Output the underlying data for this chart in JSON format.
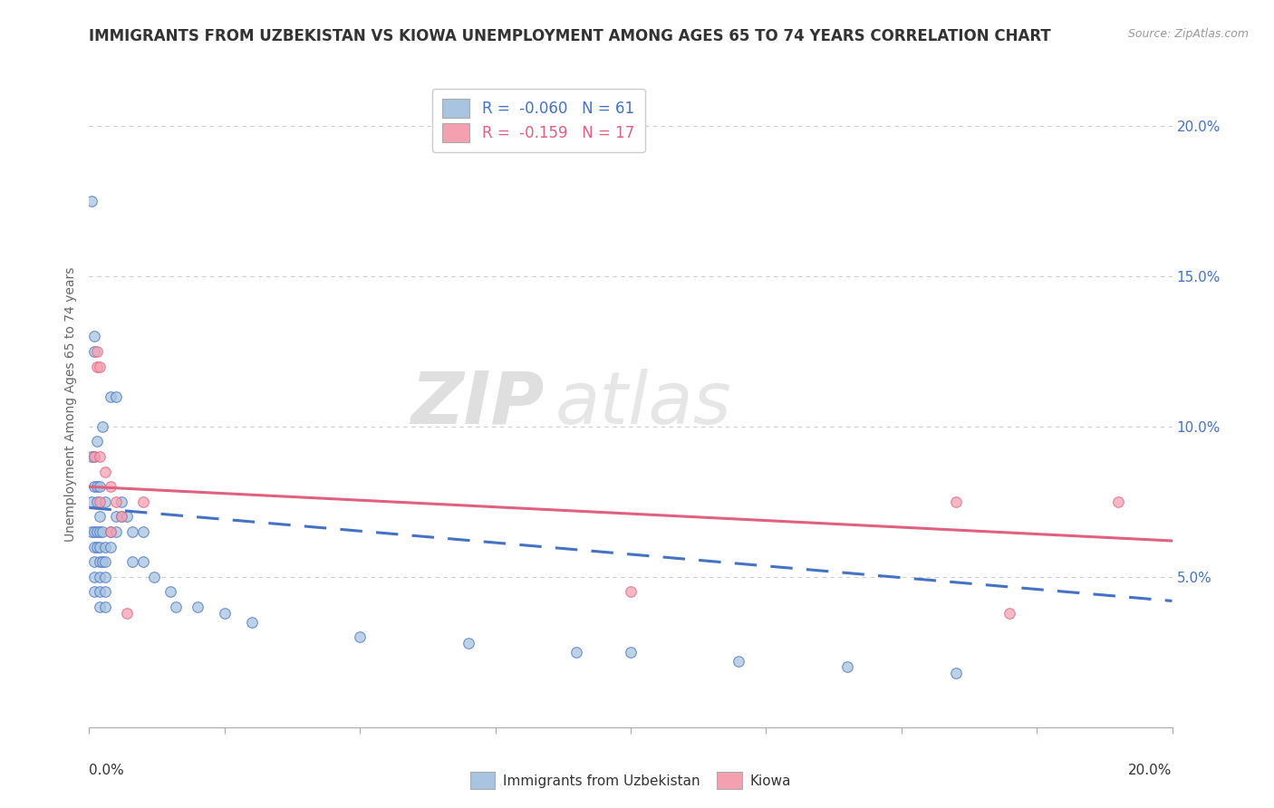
{
  "title": "IMMIGRANTS FROM UZBEKISTAN VS KIOWA UNEMPLOYMENT AMONG AGES 65 TO 74 YEARS CORRELATION CHART",
  "source_text": "Source: ZipAtlas.com",
  "ylabel": "Unemployment Among Ages 65 to 74 years",
  "legend_entries": [
    {
      "label": "Immigrants from Uzbekistan",
      "R": "-0.060",
      "N": 61,
      "color": "#a8c4e0"
    },
    {
      "label": "Kiowa",
      "R": "-0.159",
      "N": 17,
      "color": "#f4a0b0"
    }
  ],
  "watermark_zip": "ZIP",
  "watermark_atlas": "atlas",
  "xlim": [
    0.0,
    0.2
  ],
  "ylim": [
    0.0,
    0.215
  ],
  "background_color": "#ffffff",
  "grid_color": "#cccccc",
  "uzbekistan_points": [
    [
      0.0005,
      0.175
    ],
    [
      0.0005,
      0.09
    ],
    [
      0.0005,
      0.075
    ],
    [
      0.0005,
      0.065
    ],
    [
      0.001,
      0.13
    ],
    [
      0.001,
      0.125
    ],
    [
      0.001,
      0.09
    ],
    [
      0.001,
      0.08
    ],
    [
      0.001,
      0.065
    ],
    [
      0.001,
      0.06
    ],
    [
      0.001,
      0.055
    ],
    [
      0.001,
      0.05
    ],
    [
      0.001,
      0.045
    ],
    [
      0.0015,
      0.095
    ],
    [
      0.0015,
      0.08
    ],
    [
      0.0015,
      0.075
    ],
    [
      0.0015,
      0.065
    ],
    [
      0.0015,
      0.06
    ],
    [
      0.002,
      0.08
    ],
    [
      0.002,
      0.07
    ],
    [
      0.002,
      0.065
    ],
    [
      0.002,
      0.06
    ],
    [
      0.002,
      0.055
    ],
    [
      0.002,
      0.05
    ],
    [
      0.002,
      0.045
    ],
    [
      0.002,
      0.04
    ],
    [
      0.0025,
      0.1
    ],
    [
      0.0025,
      0.065
    ],
    [
      0.0025,
      0.055
    ],
    [
      0.003,
      0.075
    ],
    [
      0.003,
      0.06
    ],
    [
      0.003,
      0.055
    ],
    [
      0.003,
      0.05
    ],
    [
      0.003,
      0.045
    ],
    [
      0.003,
      0.04
    ],
    [
      0.004,
      0.11
    ],
    [
      0.004,
      0.065
    ],
    [
      0.004,
      0.06
    ],
    [
      0.005,
      0.11
    ],
    [
      0.005,
      0.07
    ],
    [
      0.005,
      0.065
    ],
    [
      0.006,
      0.075
    ],
    [
      0.006,
      0.07
    ],
    [
      0.007,
      0.07
    ],
    [
      0.008,
      0.065
    ],
    [
      0.008,
      0.055
    ],
    [
      0.01,
      0.065
    ],
    [
      0.01,
      0.055
    ],
    [
      0.012,
      0.05
    ],
    [
      0.015,
      0.045
    ],
    [
      0.016,
      0.04
    ],
    [
      0.02,
      0.04
    ],
    [
      0.025,
      0.038
    ],
    [
      0.03,
      0.035
    ],
    [
      0.05,
      0.03
    ],
    [
      0.07,
      0.028
    ],
    [
      0.09,
      0.025
    ],
    [
      0.1,
      0.025
    ],
    [
      0.12,
      0.022
    ],
    [
      0.14,
      0.02
    ],
    [
      0.16,
      0.018
    ]
  ],
  "kiowa_points": [
    [
      0.001,
      0.09
    ],
    [
      0.0015,
      0.125
    ],
    [
      0.0015,
      0.12
    ],
    [
      0.002,
      0.12
    ],
    [
      0.002,
      0.09
    ],
    [
      0.002,
      0.075
    ],
    [
      0.003,
      0.085
    ],
    [
      0.004,
      0.08
    ],
    [
      0.004,
      0.065
    ],
    [
      0.005,
      0.075
    ],
    [
      0.006,
      0.07
    ],
    [
      0.007,
      0.038
    ],
    [
      0.01,
      0.075
    ],
    [
      0.1,
      0.045
    ],
    [
      0.16,
      0.075
    ],
    [
      0.17,
      0.038
    ],
    [
      0.19,
      0.075
    ]
  ],
  "uzbekistan_line": {
    "x0": 0.0,
    "y0": 0.073,
    "x1": 0.2,
    "y1": 0.042
  },
  "kiowa_line": {
    "x0": 0.0,
    "y0": 0.08,
    "x1": 0.2,
    "y1": 0.062
  },
  "uzbekistan_line_color": "#4472c4",
  "kiowa_line_color": "#e06080",
  "title_fontsize": 12,
  "axis_label_fontsize": 10
}
